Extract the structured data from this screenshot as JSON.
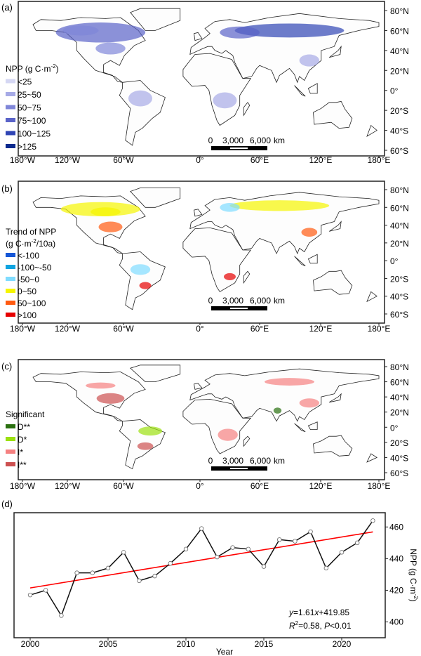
{
  "panels": {
    "a": {
      "label": "(a)",
      "legend_title": "NPP (g C·m",
      "legend_title_sup": "-2",
      "legend_title_end": ")",
      "legend": [
        {
          "label": "<25",
          "color": "#d5d7f3"
        },
        {
          "label": "25~50",
          "color": "#a6aae6"
        },
        {
          "label": "50~75",
          "color": "#7f86d8"
        },
        {
          "label": "75~100",
          "color": "#5a63c8"
        },
        {
          "label": "100~125",
          "color": "#2f44b4"
        },
        {
          "label": ">125",
          "color": "#0a2a8e"
        }
      ]
    },
    "b": {
      "label": "(b)",
      "legend_title_line1": "Trend of NPP",
      "legend_title_line2": "(g C·m",
      "legend_title_sup": "-2",
      "legend_title_end": "/10a)",
      "legend": [
        {
          "label": "<-100",
          "color": "#1556d6"
        },
        {
          "label": "-100~-50",
          "color": "#10a4e0"
        },
        {
          "label": "-50~0",
          "color": "#7fdcff"
        },
        {
          "label": "0~50",
          "color": "#f5f500"
        },
        {
          "label": "50~100",
          "color": "#ff5a10"
        },
        {
          "label": ">100",
          "color": "#e60000"
        }
      ]
    },
    "c": {
      "label": "(c)",
      "legend_title": "Significant",
      "legend": [
        {
          "label": "D**",
          "color": "#2a7010"
        },
        {
          "label": "D*",
          "color": "#9be010"
        },
        {
          "label": "I*",
          "color": "#f58080"
        },
        {
          "label": "I**",
          "color": "#cc5050"
        }
      ]
    }
  },
  "map_axes": {
    "lat_labels": [
      "80°N",
      "60°N",
      "40°N",
      "20°N",
      "0°",
      "20°S",
      "40°S",
      "60°S"
    ],
    "lon_labels": [
      "180°W",
      "120°W",
      "60°W",
      "0°",
      "60°E",
      "120°E",
      "180°E"
    ]
  },
  "scale_bar": {
    "zero": "0",
    "mid": "3,000",
    "end": "6,000",
    "unit": "km"
  },
  "chart_data": {
    "type": "line",
    "panel_label": "(d)",
    "xlabel": "Year",
    "ylabel": "NPP (g C·m",
    "ylabel_sup": "-2",
    "ylabel_end": ")",
    "x": [
      2000,
      2001,
      2002,
      2003,
      2004,
      2005,
      2006,
      2007,
      2008,
      2009,
      2010,
      2011,
      2012,
      2013,
      2014,
      2015,
      2016,
      2017,
      2018,
      2019,
      2020,
      2021,
      2022
    ],
    "values": [
      417,
      420,
      404,
      431,
      431,
      434,
      444,
      426,
      429,
      437,
      446,
      459,
      441,
      447,
      446,
      435,
      452,
      451,
      457,
      434,
      444,
      450,
      464
    ],
    "fit": {
      "slope": 1.61,
      "intercept": 419.85,
      "color": "#ff0000"
    },
    "xticks": [
      "2000",
      "2005",
      "2010",
      "2015",
      "2020"
    ],
    "yticks": [
      "400",
      "420",
      "440",
      "460"
    ],
    "xlim": [
      1999,
      2023
    ],
    "ylim": [
      390,
      469
    ],
    "y_axis_side": "right",
    "annotation_eq_y": "y",
    "annotation_eq_rest": "=1.61",
    "annotation_eq_x": "x",
    "annotation_eq_end": "+419.85",
    "annotation_r": "R",
    "annotation_r_sup": "2",
    "annotation_r_rest": "=0.58, ",
    "annotation_p": "P",
    "annotation_p_rest": "<0.01"
  }
}
